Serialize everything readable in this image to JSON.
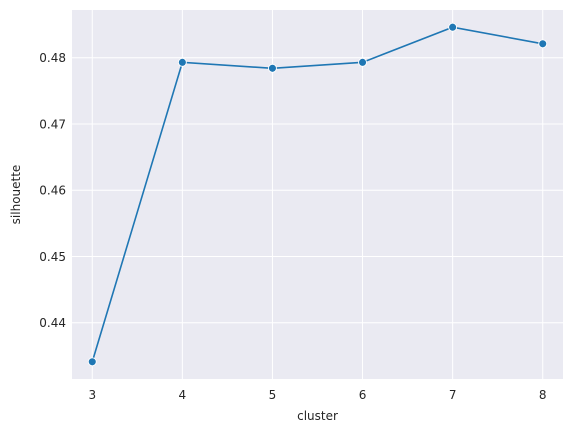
{
  "chart_data": {
    "type": "line",
    "title": "",
    "xlabel": "cluster",
    "ylabel": "silhouette",
    "x": [
      3,
      4,
      5,
      6,
      7,
      8
    ],
    "series": [
      {
        "values": [
          0.4341,
          0.4793,
          0.4784,
          0.4793,
          0.4846,
          0.4821
        ]
      }
    ],
    "xlim": [
      2.775,
      8.225
    ],
    "ylim": [
      0.4315,
      0.4872
    ],
    "xticks": [
      3,
      4,
      5,
      6,
      7,
      8
    ],
    "xtick_labels": [
      "3",
      "4",
      "5",
      "6",
      "7",
      "8"
    ],
    "yticks": [
      0.44,
      0.45,
      0.46,
      0.47,
      0.48
    ],
    "ytick_labels": [
      "0.44",
      "0.45",
      "0.46",
      "0.47",
      "0.48"
    ],
    "grid": true,
    "legend": "none",
    "colors": {
      "line": "#1f77b4",
      "marker_edge": "#ffffff",
      "plot_background": "#eaeaf2",
      "grid": "#ffffff",
      "text": "#262626"
    }
  }
}
